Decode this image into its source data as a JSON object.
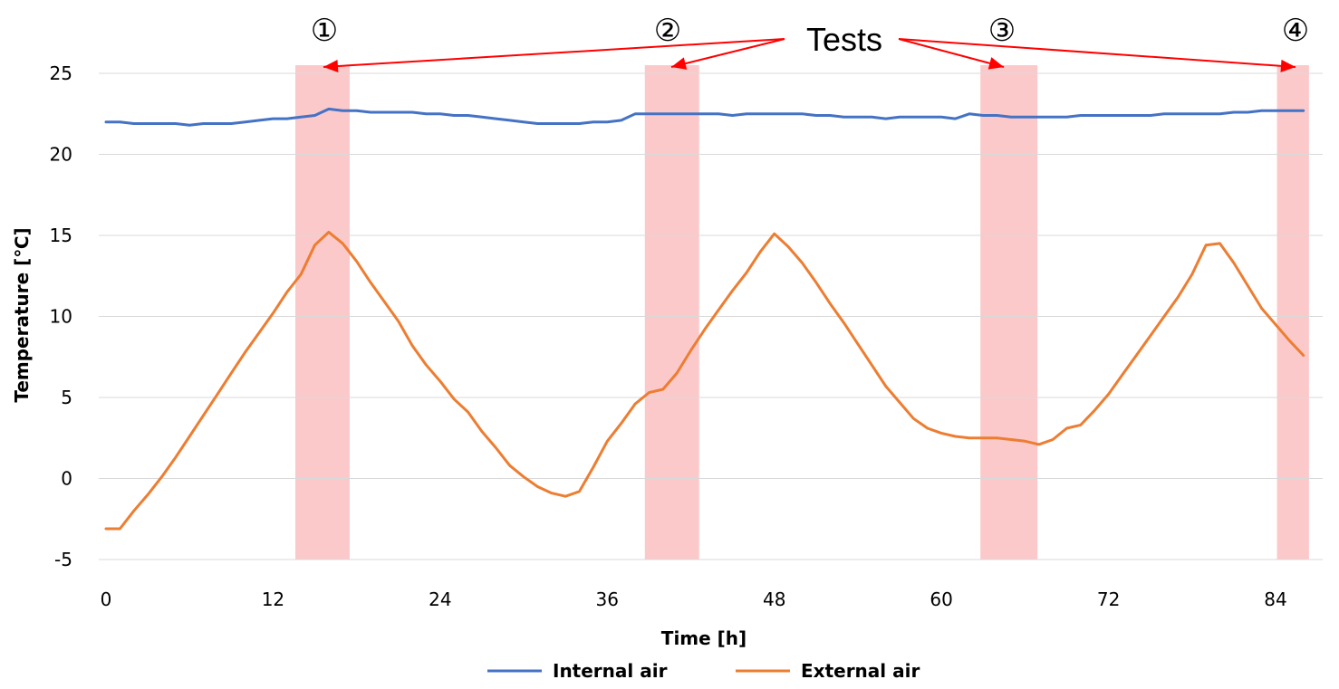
{
  "chart_data": {
    "type": "line",
    "xlabel": "Time [h]",
    "ylabel": "Temperature [℃]",
    "xlim": [
      0,
      88
    ],
    "ylim": [
      -5,
      25
    ],
    "x_ticks": [
      "0",
      "12",
      "24",
      "36",
      "48",
      "60",
      "72",
      "84"
    ],
    "y_ticks": [
      "-5",
      "0",
      "5",
      "10",
      "15",
      "20",
      "25"
    ],
    "grid": "horizontal",
    "legend_position": "bottom",
    "series": [
      {
        "name": "Internal air",
        "color": "#4472c4",
        "x": [
          0,
          1,
          2,
          3,
          4,
          5,
          6,
          7,
          8,
          9,
          10,
          11,
          12,
          13,
          14,
          15,
          16,
          17,
          18,
          19,
          20,
          21,
          22,
          23,
          24,
          25,
          26,
          27,
          28,
          29,
          30,
          31,
          32,
          33,
          34,
          35,
          36,
          37,
          38,
          39,
          40,
          41,
          42,
          43,
          44,
          45,
          46,
          47,
          48,
          49,
          50,
          51,
          52,
          53,
          54,
          55,
          56,
          57,
          58,
          59,
          60,
          61,
          62,
          63,
          64,
          65,
          66,
          67,
          68,
          69,
          70,
          71,
          72,
          73,
          74,
          75,
          76,
          77,
          78,
          79,
          80,
          81,
          82,
          83,
          84,
          85,
          86
        ],
        "y": [
          22.0,
          22.0,
          21.9,
          21.9,
          21.9,
          21.9,
          21.8,
          21.9,
          21.9,
          21.9,
          22.0,
          22.1,
          22.2,
          22.2,
          22.3,
          22.4,
          22.8,
          22.7,
          22.7,
          22.6,
          22.6,
          22.6,
          22.6,
          22.5,
          22.5,
          22.4,
          22.4,
          22.3,
          22.2,
          22.1,
          22.0,
          21.9,
          21.9,
          21.9,
          21.9,
          22.0,
          22.0,
          22.1,
          22.5,
          22.5,
          22.5,
          22.5,
          22.5,
          22.5,
          22.5,
          22.4,
          22.5,
          22.5,
          22.5,
          22.5,
          22.5,
          22.4,
          22.4,
          22.3,
          22.3,
          22.3,
          22.2,
          22.3,
          22.3,
          22.3,
          22.3,
          22.2,
          22.5,
          22.4,
          22.4,
          22.3,
          22.3,
          22.3,
          22.3,
          22.3,
          22.4,
          22.4,
          22.4,
          22.4,
          22.4,
          22.4,
          22.5,
          22.5,
          22.5,
          22.5,
          22.5,
          22.6,
          22.6,
          22.7,
          22.7,
          22.7,
          22.7
        ]
      },
      {
        "name": "External air",
        "color": "#ed7d31",
        "x": [
          0,
          1,
          2,
          3,
          4,
          5,
          6,
          7,
          8,
          9,
          10,
          11,
          12,
          13,
          14,
          15,
          16,
          17,
          18,
          19,
          20,
          21,
          22,
          23,
          24,
          25,
          26,
          27,
          28,
          29,
          30,
          31,
          32,
          33,
          34,
          35,
          36,
          37,
          38,
          39,
          40,
          41,
          42,
          43,
          44,
          45,
          46,
          47,
          48,
          49,
          50,
          51,
          52,
          53,
          54,
          55,
          56,
          57,
          58,
          59,
          60,
          61,
          62,
          63,
          64,
          65,
          66,
          67,
          68,
          69,
          70,
          71,
          72,
          73,
          74,
          75,
          76,
          77,
          78,
          79,
          80,
          81,
          82,
          83,
          84,
          85,
          86
        ],
        "y": [
          -3.1,
          -3.1,
          -2.0,
          -1.0,
          0.1,
          1.3,
          2.6,
          3.9,
          5.2,
          6.5,
          7.8,
          9.0,
          10.2,
          11.5,
          12.6,
          14.4,
          15.2,
          14.5,
          13.4,
          12.1,
          10.9,
          9.7,
          8.2,
          7.0,
          6.0,
          4.9,
          4.1,
          2.9,
          1.9,
          0.8,
          0.1,
          -0.5,
          -0.9,
          -1.1,
          -0.8,
          0.7,
          2.3,
          3.4,
          4.6,
          5.3,
          5.5,
          6.5,
          7.9,
          9.2,
          10.4,
          11.6,
          12.7,
          14.0,
          15.1,
          14.3,
          13.3,
          12.1,
          10.8,
          9.6,
          8.3,
          7.0,
          5.7,
          4.7,
          3.7,
          3.1,
          2.8,
          2.6,
          2.5,
          2.5,
          2.5,
          2.4,
          2.3,
          2.1,
          2.4,
          3.1,
          3.3,
          4.2,
          5.2,
          6.4,
          7.6,
          8.8,
          10.0,
          11.2,
          12.6,
          14.4,
          14.5,
          13.3,
          11.9,
          10.5,
          9.5,
          8.5,
          7.6
        ]
      }
    ],
    "highlight_bands": [
      {
        "label": "①",
        "x_start": 13.6,
        "x_end": 17.5
      },
      {
        "label": "②",
        "x_start": 38.7,
        "x_end": 42.6
      },
      {
        "label": "③",
        "x_start": 62.8,
        "x_end": 66.9
      },
      {
        "label": "④",
        "x_start": 84.1,
        "x_end": 86.4
      }
    ],
    "band_color": "#fcc9ca",
    "callout": {
      "text": "Tests",
      "arrow_color": "#ff0000"
    }
  }
}
